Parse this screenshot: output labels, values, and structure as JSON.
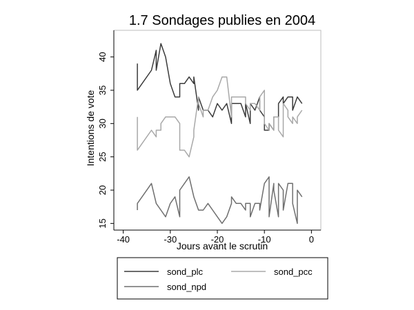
{
  "chart_data": {
    "type": "line",
    "title": "1.7 Sondages publies en 2004",
    "xlabel": "Jours avant le scrutin",
    "ylabel": "Intentions de vote",
    "xlim": [
      -42,
      2
    ],
    "ylim": [
      14,
      44
    ],
    "xticks": [
      -40,
      -30,
      -20,
      -10,
      0
    ],
    "yticks": [
      15,
      20,
      25,
      30,
      35,
      40
    ],
    "grid": false,
    "legend_placement": "bottom",
    "series": [
      {
        "name": "sond_plc",
        "color": "#3a3a3a",
        "x": [
          -37,
          -37,
          -36,
          -34,
          -33,
          -33,
          -32,
          -32,
          -31,
          -30,
          -29,
          -28,
          -28,
          -27,
          -27,
          -26,
          -25,
          -25,
          -24,
          -24,
          -23,
          -23,
          -22,
          -21,
          -20,
          -19,
          -19,
          -18,
          -17,
          -17,
          -16,
          -15,
          -14,
          -14,
          -13,
          -13,
          -12,
          -11,
          -11,
          -10,
          -10,
          -9,
          -9,
          -8,
          -8,
          -7,
          -7,
          -6,
          -6,
          -5,
          -5,
          -4,
          -4,
          -3,
          -3,
          -2
        ],
        "y": [
          39,
          35,
          36,
          38,
          41,
          38,
          42,
          42,
          40,
          36,
          34,
          34,
          36,
          36,
          36,
          37,
          36,
          37,
          32,
          34,
          32,
          32,
          32,
          31,
          33,
          32,
          32,
          33,
          30,
          33,
          33,
          33,
          31,
          33,
          30,
          33,
          32,
          34,
          32,
          31,
          29,
          29,
          30,
          29,
          31,
          31,
          33,
          34,
          33,
          34,
          34,
          34,
          32,
          34,
          34,
          33
        ]
      },
      {
        "name": "sond_pcc",
        "color": "#a8a8a8",
        "x": [
          -37,
          -37,
          -36,
          -34,
          -33,
          -33,
          -32,
          -32,
          -31,
          -30,
          -29,
          -28,
          -28,
          -27,
          -27,
          -26,
          -25,
          -25,
          -24,
          -24,
          -23,
          -23,
          -22,
          -21,
          -20,
          -19,
          -19,
          -18,
          -17,
          -17,
          -16,
          -15,
          -14,
          -14,
          -13,
          -13,
          -12,
          -11,
          -11,
          -10,
          -10,
          -9,
          -9,
          -8,
          -8,
          -7,
          -7,
          -6,
          -6,
          -5,
          -5,
          -4,
          -4,
          -3,
          -3,
          -2
        ],
        "y": [
          31,
          26,
          27,
          29,
          28,
          29,
          29,
          30,
          31,
          31,
          31,
          30,
          26,
          26,
          26,
          25,
          28,
          29,
          34,
          33,
          31,
          32,
          32,
          34,
          35,
          37,
          37,
          37,
          31,
          34,
          34,
          34,
          34,
          33,
          32,
          33,
          33,
          32,
          34,
          35,
          30,
          29,
          30,
          29,
          31,
          31,
          29,
          28,
          33,
          32,
          31,
          30,
          31,
          30,
          31,
          32
        ]
      },
      {
        "name": "sond_npd",
        "color": "#6e6e6e",
        "x": [
          -37,
          -37,
          -36,
          -34,
          -33,
          -33,
          -32,
          -32,
          -31,
          -30,
          -29,
          -28,
          -28,
          -27,
          -27,
          -26,
          -25,
          -25,
          -24,
          -24,
          -23,
          -23,
          -22,
          -21,
          -20,
          -19,
          -19,
          -18,
          -17,
          -17,
          -16,
          -15,
          -14,
          -14,
          -13,
          -13,
          -12,
          -11,
          -11,
          -10,
          -10,
          -9,
          -9,
          -8,
          -8,
          -7,
          -7,
          -6,
          -6,
          -5,
          -5,
          -4,
          -4,
          -3,
          -3,
          -2
        ],
        "y": [
          17,
          18,
          19,
          21,
          18,
          18,
          17,
          17,
          16,
          18,
          19,
          16,
          20,
          21,
          21,
          22,
          19,
          19,
          17,
          17,
          17,
          17,
          18,
          17,
          16,
          15,
          15,
          16,
          18,
          19,
          18,
          18,
          17,
          18,
          18,
          16,
          18,
          18,
          17,
          21,
          21,
          22,
          16,
          21,
          20,
          16,
          21,
          20,
          17,
          21,
          21,
          21,
          18,
          15,
          20,
          19
        ]
      }
    ]
  }
}
